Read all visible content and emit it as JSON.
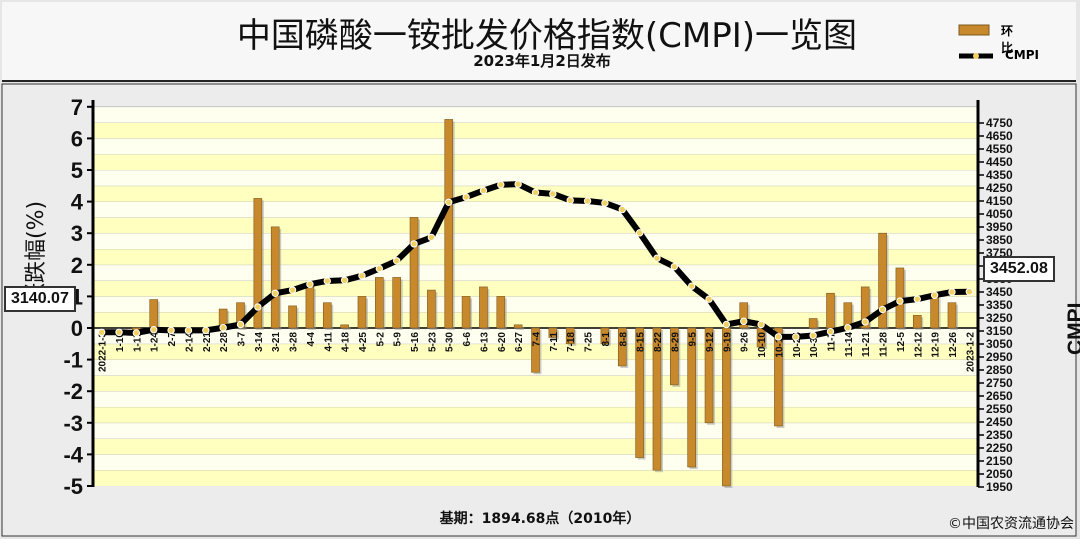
{
  "header": {
    "title": "中国磷酸一铵批发价格指数(CMPI)一览图",
    "subtitle": "2023年1月2日发布"
  },
  "legend": {
    "bar_label": "环比",
    "line_label": "CMPI"
  },
  "footer": {
    "base_text": "基期：1894.68点（2010年）",
    "copyright": "©中国农资流通协会"
  },
  "tags": {
    "left_value": "3140.07",
    "right_value": "3452.08"
  },
  "colors": {
    "background": "#e6e6e6",
    "plot_band": "#ffffc0",
    "bar": "#c8882c",
    "line": "#000000",
    "marker": "#f0d060"
  },
  "chart_data": {
    "type": "bar+line",
    "ylabel": "涨跌幅(%)",
    "y2label": "CMPI",
    "ylim": [
      -5,
      7
    ],
    "y2lim": [
      1950,
      4800
    ],
    "yticks": [
      -5,
      -4,
      -3,
      -2,
      -1,
      0,
      1,
      2,
      3,
      4,
      5,
      6,
      7
    ],
    "y2ticks": [
      1950,
      2050,
      2150,
      2250,
      2350,
      2450,
      2550,
      2650,
      2750,
      2850,
      2950,
      3050,
      3150,
      3250,
      3350,
      3450,
      3550,
      3650,
      3750,
      3850,
      3950,
      4050,
      4150,
      4250,
      4350,
      4450,
      4550,
      4650,
      4750
    ],
    "categories": [
      "2022-1-3",
      "1-10",
      "1-17",
      "1-24",
      "2-7",
      "2-14",
      "2-21",
      "2-28",
      "3-7",
      "3-14",
      "3-21",
      "3-28",
      "4-4",
      "4-11",
      "4-18",
      "4-25",
      "5-2",
      "5-9",
      "5-16",
      "5-23",
      "5-30",
      "6-6",
      "6-13",
      "6-20",
      "6-27",
      "7-4",
      "7-11",
      "7-18",
      "7-25",
      "8-1",
      "8-8",
      "8-15",
      "8-22",
      "8-29",
      "9-5",
      "9-12",
      "9-19",
      "9-26",
      "10-10",
      "10-17",
      "10-24",
      "10-31",
      "11-7",
      "11-14",
      "11-21",
      "11-28",
      "12-5",
      "12-12",
      "12-19",
      "12-26",
      "2023-1-2"
    ],
    "series": [
      {
        "name": "环比",
        "type": "bar",
        "values": [
          0.0,
          0.0,
          -0.1,
          0.9,
          0.0,
          0.0,
          0.0,
          0.6,
          0.8,
          4.1,
          3.2,
          0.7,
          1.3,
          0.8,
          0.1,
          1.0,
          1.6,
          1.6,
          3.5,
          1.2,
          6.6,
          1.0,
          1.3,
          1.0,
          0.1,
          -1.4,
          -0.3,
          -0.5,
          0.0,
          -0.5,
          -1.2,
          -4.1,
          -4.5,
          -1.8,
          -4.4,
          -3.0,
          -5.0,
          0.8,
          -0.6,
          -3.1,
          0.0,
          0.3,
          1.1,
          0.8,
          1.3,
          3.0,
          1.9,
          0.4,
          1.0,
          0.8,
          0.0
        ]
      },
      {
        "name": "CMPI",
        "type": "line",
        "values": [
          3140,
          3140,
          3135,
          3160,
          3155,
          3155,
          3155,
          3175,
          3200,
          3335,
          3440,
          3465,
          3510,
          3535,
          3540,
          3575,
          3630,
          3690,
          3820,
          3870,
          4140,
          4180,
          4230,
          4275,
          4280,
          4215,
          4205,
          4155,
          4150,
          4135,
          4085,
          3905,
          3710,
          3645,
          3495,
          3395,
          3200,
          3225,
          3200,
          3105,
          3105,
          3115,
          3145,
          3175,
          3220,
          3315,
          3380,
          3395,
          3425,
          3450,
          3452
        ]
      }
    ]
  }
}
